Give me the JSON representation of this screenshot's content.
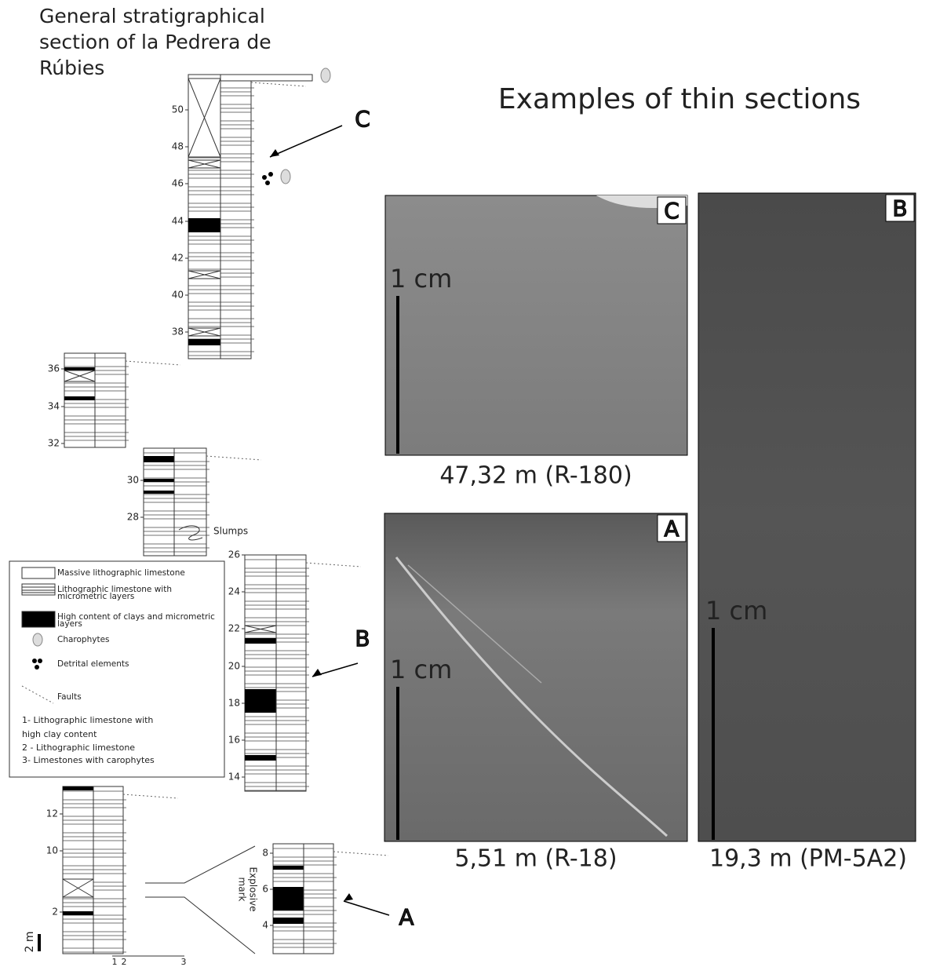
{
  "title": [
    "General stratigraphical",
    "section of la Pedrera de",
    "Rúbies"
  ],
  "columns": [
    {
      "ticks": [
        38,
        40,
        42,
        44,
        46,
        48,
        50
      ]
    },
    {
      "ticks": [
        32,
        34,
        36
      ]
    },
    {
      "ticks": [
        28,
        30
      ]
    },
    {
      "ticks": [
        14,
        16,
        18,
        20,
        22,
        24,
        26
      ]
    },
    {
      "ticks": [
        2,
        10,
        12
      ]
    },
    {
      "ticks": [
        4,
        6,
        8
      ]
    }
  ],
  "scale": {
    "label": "2 m",
    "axis": [
      1,
      2,
      3
    ]
  },
  "annotations": {
    "slumps": "Slumps",
    "explosive_mark": [
      "Explosive",
      "mark"
    ]
  },
  "callouts": [
    "C",
    "B",
    "A"
  ],
  "legend": {
    "items": [
      [
        "Massive lithographic limestone"
      ],
      [
        "Lithographic limestone with",
        "micrometric layers"
      ],
      [
        "High content of clays and micrometric",
        "layers"
      ],
      [
        "Charophytes"
      ],
      [
        "Detrital elements"
      ],
      [
        "Faults"
      ]
    ],
    "notes": [
      [
        "1- Lithographic limestone with",
        "high clay content"
      ],
      [
        "2 - Lithographic limestone"
      ],
      [
        "3- Limestones with carophytes"
      ]
    ]
  },
  "thin_sections": {
    "title": "Examples of thin sections",
    "panels": [
      {
        "letter": "C",
        "scale": "1 cm",
        "caption": "47,32 m (R-180)"
      },
      {
        "letter": "A",
        "scale": "1 cm",
        "caption": "5,51 m (R-18)"
      },
      {
        "letter": "B",
        "scale": "1 cm",
        "caption": "19,3 m (PM-5A2)"
      }
    ]
  }
}
